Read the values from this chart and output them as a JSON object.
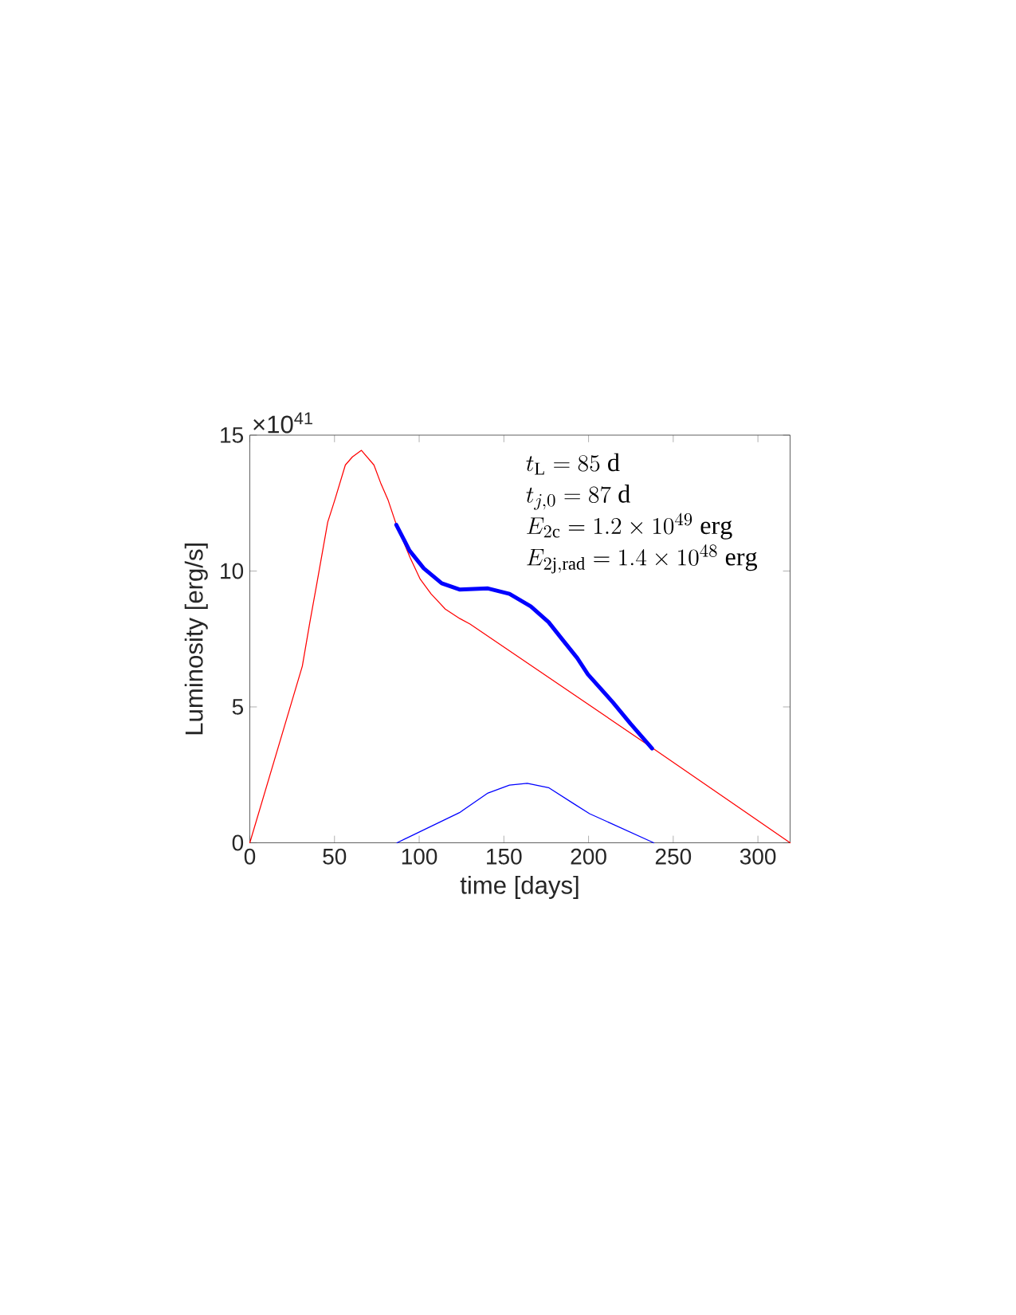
{
  "chart_data": {
    "type": "line",
    "xlabel": "time [days]",
    "ylabel": "Luminosity [erg/s]",
    "xlim": [
      0,
      319
    ],
    "ylim": [
      0,
      15
    ],
    "xticks": [
      0,
      50,
      100,
      150,
      200,
      250,
      300
    ],
    "yticks": [
      0,
      5,
      10,
      15
    ],
    "grid": false,
    "marker": "none",
    "line_style": "solid",
    "annotations": [
      "×10$^{41}$",
      "t_{\\mathrm{L}} = 85\\ \\mathrm{d}",
      "t_{j,0} = 87\\ \\mathrm{d}",
      "E_{2\\mathrm{c}} = 1.2\\times 10^{49}\\ \\mathrm{erg}",
      "E_{2\\mathrm{j,rad}} = 1.4\\times 10^{48}\\ \\mathrm{erg}"
    ],
    "series": [
      {
        "color": "#ff0000",
        "x": [
          0,
          31,
          35.4,
          39.6,
          46,
          50.1,
          56.4,
          60.6,
          65.9,
          73.3,
          77.5,
          81.7,
          86,
          94.6,
          100.6,
          107,
          115.4,
          124,
          130,
          237.5,
          319
        ],
        "values": [
          0,
          6.5,
          8.1,
          9.55,
          11.8,
          12.6,
          13.9,
          14.2,
          14.44,
          13.9,
          13.2,
          12.6,
          11.8,
          10.5,
          9.7,
          9.16,
          8.6,
          8.25,
          8.05,
          3.5,
          0
        ]
      },
      {
        "color": "#0000ff",
        "x": [
          86.5,
          94.3,
          102.7,
          113.3,
          123.8,
          140.6,
          153.3,
          165.9,
          176.4,
          184.8,
          193.3,
          199.6,
          214.3,
          224.8,
          237.5
        ],
        "values": [
          11.7,
          10.75,
          10.1,
          9.55,
          9.32,
          9.36,
          9.16,
          8.7,
          8.12,
          7.46,
          6.8,
          6.2,
          5.17,
          4.38,
          3.47
        ]
      },
      {
        "color": "#0000ff",
        "x": [
          86.9,
          123.8,
          140.6,
          153.3,
          163.8,
          176.4,
          191.2,
          200.6,
          238.5
        ],
        "values": [
          0,
          1.11,
          1.83,
          2.12,
          2.19,
          2.03,
          1.44,
          1.07,
          0
        ]
      }
    ]
  }
}
